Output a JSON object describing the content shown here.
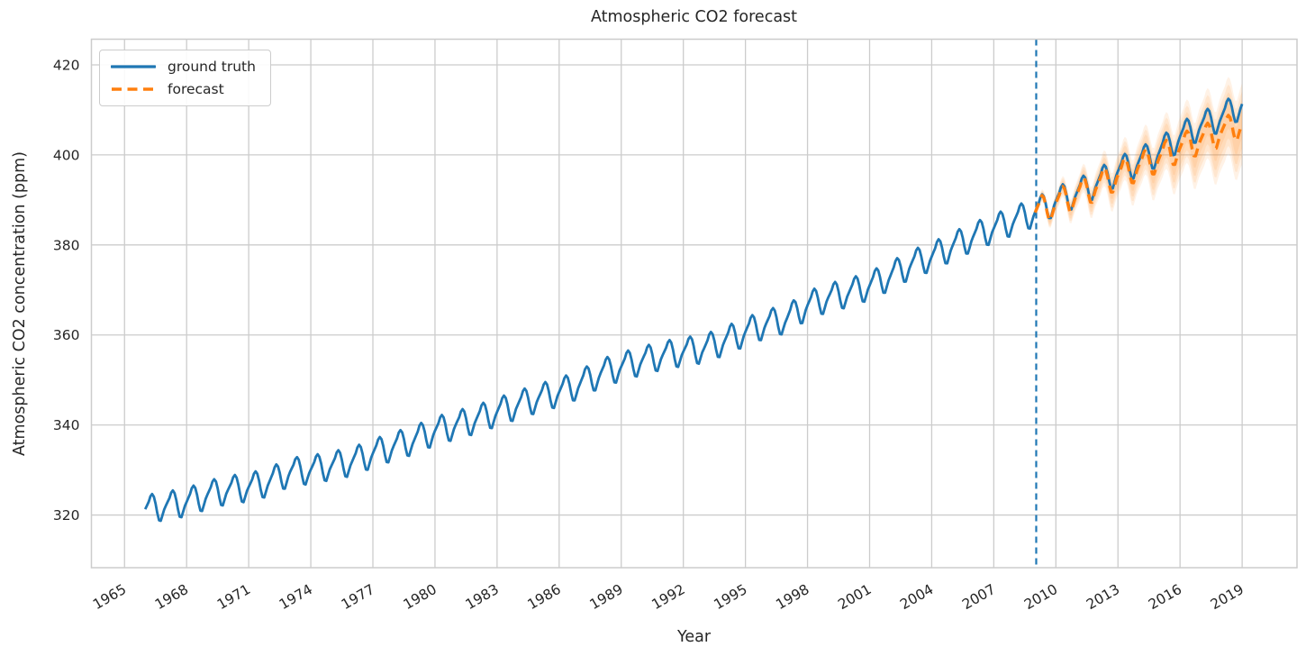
{
  "chart_data": {
    "type": "line",
    "title": "Atmospheric CO2 forecast",
    "xlabel": "Year",
    "ylabel": "Atmospheric CO2 concentration (ppm)",
    "xlim": [
      1963.4,
      2021.65
    ],
    "ylim": [
      308.3,
      425.7
    ],
    "x_ticks": [
      1965,
      1968,
      1971,
      1974,
      1977,
      1980,
      1983,
      1986,
      1989,
      1992,
      1995,
      1998,
      2001,
      2004,
      2007,
      2010,
      2013,
      2016,
      2019
    ],
    "y_ticks": [
      320,
      340,
      360,
      380,
      400,
      420
    ],
    "grid": true,
    "legend_position": "upper left",
    "background_color": "#ffffff",
    "grid_color": "#cccccc",
    "spine_color": "#cccccc",
    "text_color": "#262626",
    "split_line": {
      "year": 2009.05,
      "color": "#1f77b4",
      "style": "dashed"
    },
    "seasonal_monthly_offsets": [
      -0.1,
      0.65,
      1.4,
      2.55,
      3.0,
      2.35,
      0.75,
      -1.4,
      -3.1,
      -3.3,
      -2.1,
      -0.9
    ],
    "series": [
      {
        "name": "ground truth",
        "color": "#1f77b4",
        "style": "solid",
        "start_year": 1966,
        "end_year": 2019,
        "annual_means": [
          321.4,
          322.2,
          323.0,
          324.6,
          325.7,
          326.3,
          327.5,
          329.7,
          330.2,
          331.1,
          332.0,
          333.8,
          335.4,
          336.8,
          338.8,
          340.1,
          341.4,
          343.0,
          344.6,
          346.1,
          347.4,
          349.2,
          351.6,
          353.1,
          354.4,
          355.6,
          356.4,
          357.1,
          358.8,
          360.8,
          362.6,
          363.7,
          366.7,
          368.4,
          369.5,
          371.1,
          373.2,
          375.8,
          377.5,
          379.8,
          381.9,
          383.8,
          385.6,
          387.4,
          389.9,
          391.6,
          393.9,
          396.5,
          398.6,
          400.8,
          404.2,
          406.6,
          408.5,
          411.4
        ]
      },
      {
        "name": "forecast",
        "color": "#ff7f0e",
        "style": "dashed",
        "start_year": 2009,
        "end_year": 2019,
        "annual_means": [
          387.3,
          389.4,
          391.2,
          393.3,
          395.6,
          397.6,
          399.5,
          401.7,
          403.5,
          405.2,
          407.0
        ],
        "uncertainty": {
          "color": "#ff7f0e",
          "alpha": 0.1,
          "half_width_start": 1.0,
          "half_width_end": 9.0,
          "growth": 0.9,
          "levels": [
            0.35,
            0.6,
            0.8,
            1.0
          ]
        }
      }
    ]
  }
}
